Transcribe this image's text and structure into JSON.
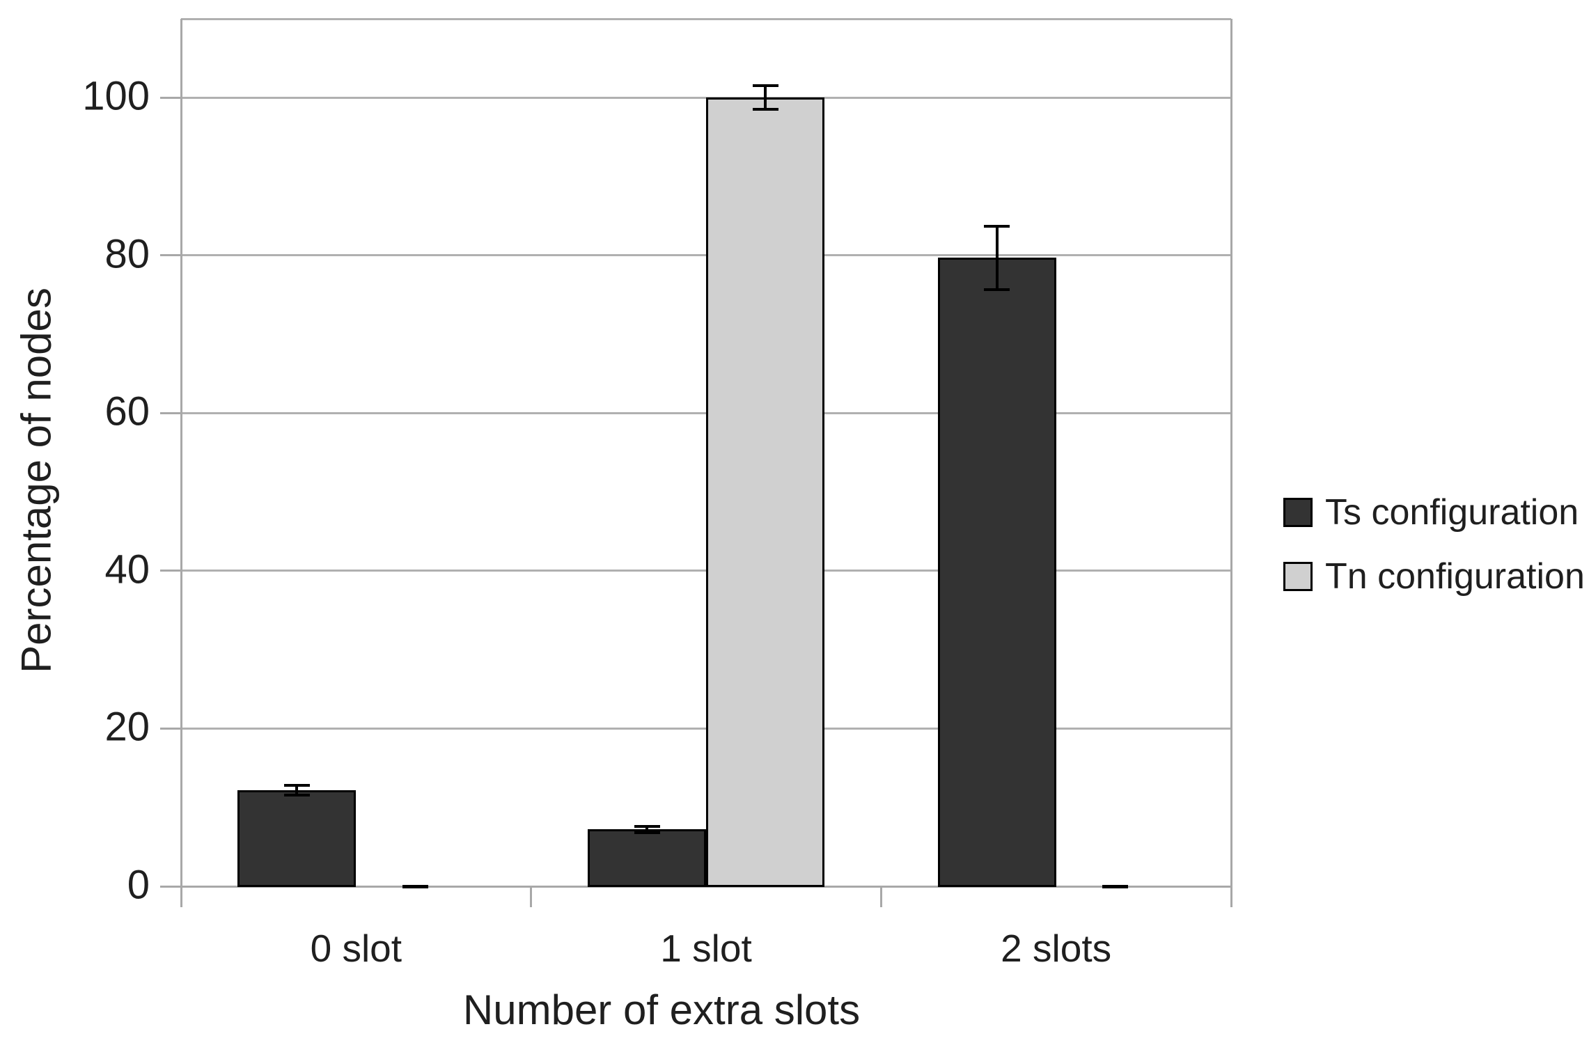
{
  "chart_data": {
    "type": "bar",
    "title": "",
    "xlabel": "Number of extra slots",
    "ylabel": "Percentage of nodes",
    "categories": [
      "0 slot",
      "1 slot",
      "2 slots"
    ],
    "series": [
      {
        "name": "Ts configuration",
        "color": "#333333",
        "values": [
          12.2,
          7.2,
          79.7
        ],
        "errors": [
          0.6,
          0.4,
          4.0
        ]
      },
      {
        "name": "Tn configuration",
        "color": "#d0d0d0",
        "values": [
          0,
          100,
          0
        ],
        "errors": [
          0,
          1.5,
          0
        ]
      }
    ],
    "yticks": [
      0,
      20,
      40,
      60,
      80,
      100
    ],
    "ylim": [
      0,
      110
    ],
    "grid": true,
    "legend_position": "right",
    "error_bars": true
  },
  "colors": {
    "grid": "#b0b0b0",
    "axis": "#a8a8a8",
    "error_bar": "#000000",
    "text": "#1f1f1f",
    "background": "#ffffff"
  }
}
